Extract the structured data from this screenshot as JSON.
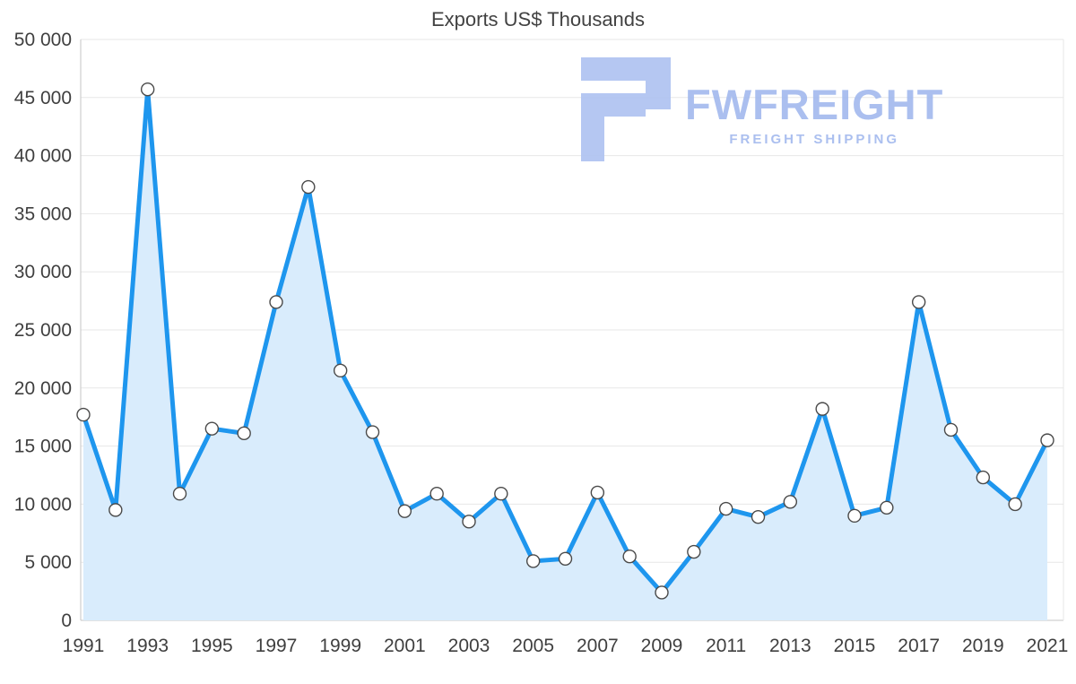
{
  "page": {
    "background": "#ffffff"
  },
  "watermark": {
    "brand": "FWFREIGHT",
    "tagline": "FREIGHT SHIPPING",
    "color": "#a2b9ee"
  },
  "chart_data": {
    "type": "area",
    "title": "Exports US$ Thousands",
    "x": [
      1991,
      1992,
      1993,
      1994,
      1995,
      1996,
      1997,
      1998,
      1999,
      2000,
      2001,
      2002,
      2003,
      2004,
      2005,
      2006,
      2007,
      2008,
      2009,
      2010,
      2011,
      2012,
      2013,
      2014,
      2015,
      2016,
      2017,
      2018,
      2019,
      2020,
      2021
    ],
    "series": [
      {
        "name": "Exports US$ Thousands",
        "values": [
          17700,
          9500,
          45700,
          10900,
          16500,
          16100,
          27400,
          37300,
          21500,
          16200,
          9400,
          10900,
          8500,
          10900,
          5100,
          5300,
          11000,
          5500,
          2400,
          5900,
          9600,
          8900,
          10200,
          18200,
          9000,
          9700,
          27400,
          16400,
          12300,
          10000,
          15500
        ]
      }
    ],
    "ylim": [
      0,
      50000
    ],
    "y_tick_step": 5000,
    "x_tick_every": 2,
    "y_label_format": "space-thousands",
    "grid": true,
    "legend": false,
    "colors": {
      "line": "#1e96ee",
      "fill": "#d9ecfc",
      "marker_fill": "#ffffff",
      "marker_stroke": "#4a4a4a",
      "grid": "#e7e7e7",
      "axis": "#c6c6c6",
      "text": "#3f3f3f"
    }
  }
}
